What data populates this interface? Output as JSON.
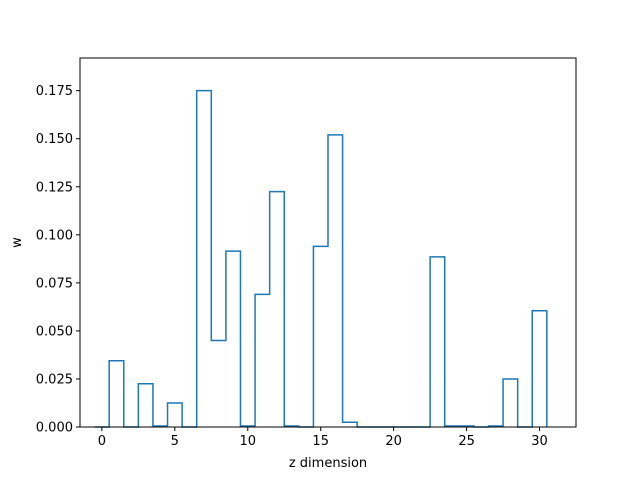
{
  "chart_data": {
    "type": "bar",
    "style": "step-histogram",
    "title": "",
    "xlabel": "z dimension",
    "ylabel": "w",
    "xlim": [
      -1.5,
      32.5
    ],
    "ylim": [
      0,
      0.192
    ],
    "xticks": [
      0,
      5,
      10,
      15,
      20,
      25,
      30
    ],
    "xtick_labels": [
      "0",
      "5",
      "10",
      "15",
      "20",
      "25",
      "30"
    ],
    "yticks": [
      0.0,
      0.025,
      0.05,
      0.075,
      0.1,
      0.125,
      0.15,
      0.175
    ],
    "ytick_labels": [
      "0.000",
      "0.025",
      "0.050",
      "0.075",
      "0.100",
      "0.125",
      "0.150",
      "0.175"
    ],
    "grid": false,
    "color": "#1f77b4",
    "categories": [
      0,
      1,
      2,
      3,
      4,
      5,
      6,
      7,
      8,
      9,
      10,
      11,
      12,
      13,
      14,
      15,
      16,
      17,
      18,
      19,
      20,
      21,
      22,
      23,
      24,
      25,
      26,
      27,
      28,
      29,
      30
    ],
    "values": [
      0.0,
      0.0345,
      0.0,
      0.0225,
      0.0005,
      0.0125,
      0.0,
      0.175,
      0.045,
      0.0915,
      0.0005,
      0.069,
      0.1225,
      0.0005,
      0.0,
      0.094,
      0.152,
      0.0025,
      0.0,
      0.0,
      0.0,
      0.0,
      0.0,
      0.0885,
      0.0005,
      0.0005,
      0.0,
      0.0005,
      0.025,
      0.0,
      0.0605
    ]
  }
}
